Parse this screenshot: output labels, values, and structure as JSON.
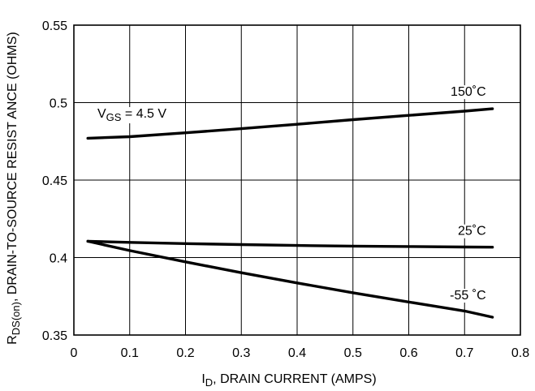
{
  "chart_data": {
    "type": "line",
    "title": "",
    "xlabel": {
      "main": "I",
      "sub": "D",
      "rest": ", DRAIN CURRENT (AMPS)"
    },
    "ylabel": {
      "main": "R",
      "sub": "DS(on)",
      "rest": ", DRAIN-TO-SOURCE RESIST ANCE (OHMS)"
    },
    "xlim": [
      0,
      0.8
    ],
    "ylim": [
      0.35,
      0.55
    ],
    "xticks": [
      0,
      0.1,
      0.2,
      0.3,
      0.4,
      0.5,
      0.6,
      0.7,
      0.8
    ],
    "xtick_labels": [
      "0",
      "0.1",
      "0.2",
      "0.3",
      "0.4",
      "0.5",
      "0.6",
      "0.7",
      "0.8"
    ],
    "yticks": [
      0.35,
      0.4,
      0.45,
      0.5,
      0.55
    ],
    "ytick_labels": [
      "0.35",
      "0.4",
      "0.45",
      "0.5",
      "0.55"
    ],
    "grid": true,
    "annotation": {
      "main": "V",
      "sub": "GS",
      "rest": " = 4.5  V"
    },
    "series": [
      {
        "name": "150˚C",
        "x": [
          0.025,
          0.1,
          0.2,
          0.3,
          0.4,
          0.5,
          0.6,
          0.7,
          0.75
        ],
        "y": [
          0.477,
          0.478,
          0.4805,
          0.4832,
          0.486,
          0.489,
          0.4918,
          0.4945,
          0.496
        ]
      },
      {
        "name": "25˚C",
        "x": [
          0.025,
          0.1,
          0.2,
          0.3,
          0.4,
          0.5,
          0.6,
          0.7,
          0.75
        ],
        "y": [
          0.4105,
          0.4098,
          0.409,
          0.4084,
          0.4078,
          0.4074,
          0.4071,
          0.4068,
          0.4067
        ]
      },
      {
        "name": "-55 ˚C",
        "x": [
          0.025,
          0.1,
          0.2,
          0.3,
          0.4,
          0.5,
          0.6,
          0.7,
          0.75
        ],
        "y": [
          0.4105,
          0.4045,
          0.3972,
          0.3902,
          0.3836,
          0.3773,
          0.3713,
          0.3655,
          0.3615
        ]
      }
    ]
  }
}
